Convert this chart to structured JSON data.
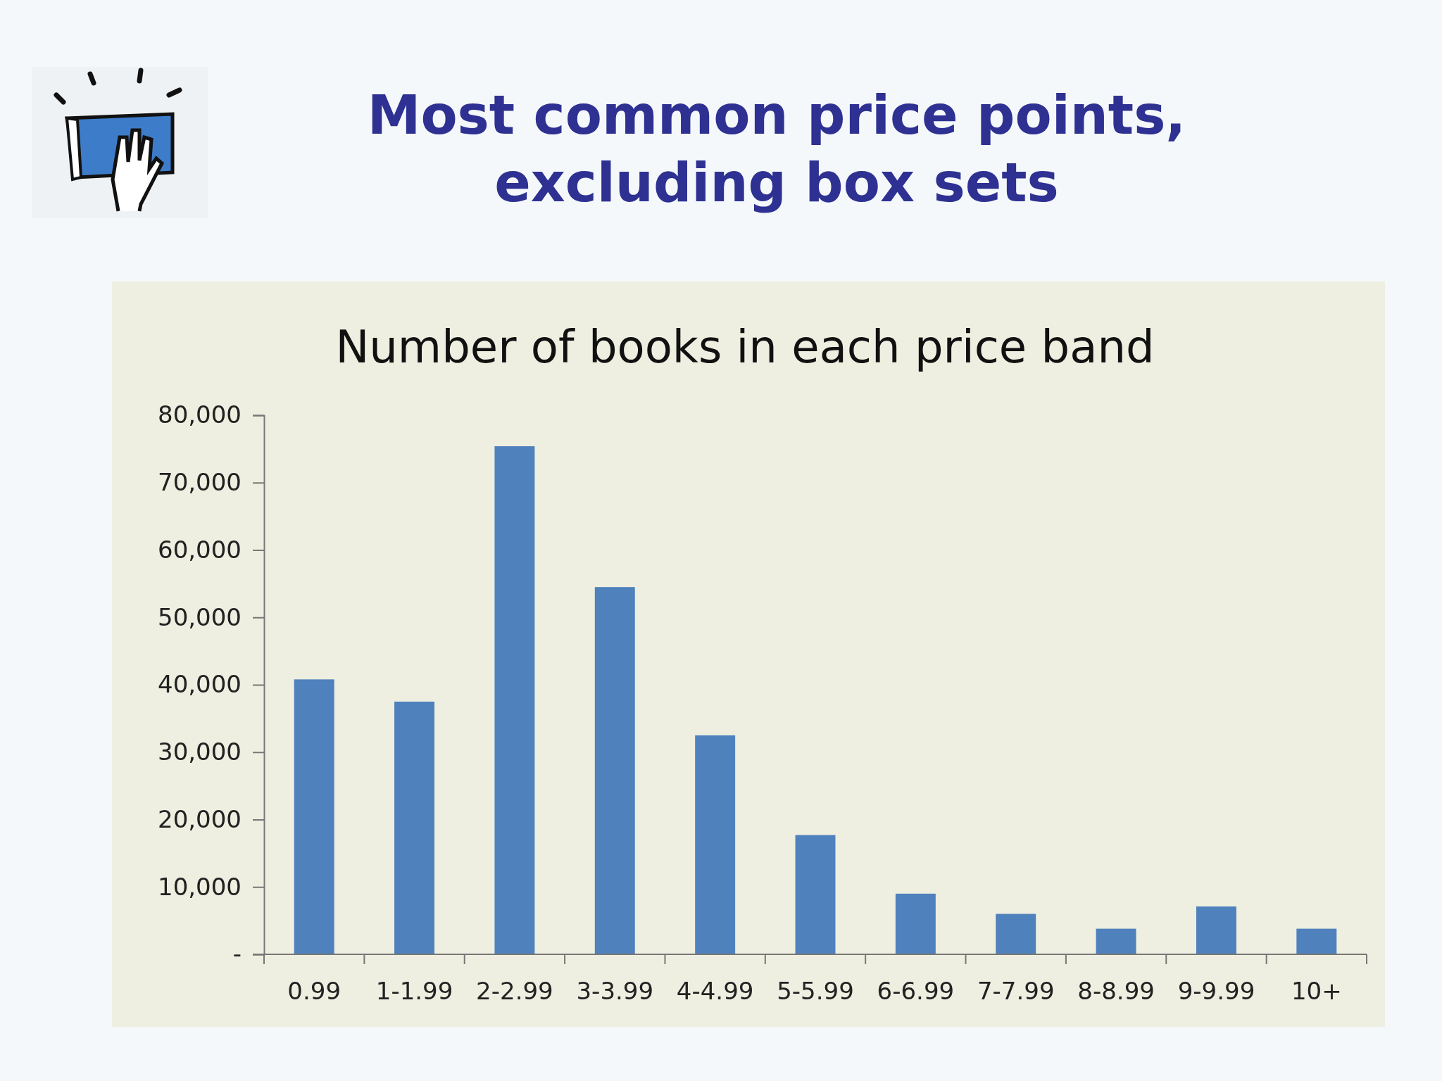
{
  "chart_data": {
    "type": "bar",
    "title": "Most common price points,\nexcluding box sets",
    "subtitle": "Number of books in each price band",
    "categories": [
      "0.99",
      "1-1.99",
      "2-2.99",
      "3-3.99",
      "4-4.99",
      "5-5.99",
      "6-6.99",
      "7-7.99",
      "8-8.99",
      "9-9.99",
      "10+"
    ],
    "values": [
      40800,
      37500,
      75400,
      54500,
      32500,
      17700,
      9000,
      6000,
      3800,
      7100,
      3800
    ],
    "color": "#4f81bd",
    "ylim": [
      0,
      80000
    ],
    "yticks": [
      {
        "value": 0,
        "label": "-"
      },
      {
        "value": 10000,
        "label": "10,000"
      },
      {
        "value": 20000,
        "label": "20,000"
      },
      {
        "value": 30000,
        "label": "30,000"
      },
      {
        "value": 40000,
        "label": "40,000"
      },
      {
        "value": 50000,
        "label": "50,000"
      },
      {
        "value": 60000,
        "label": "60,000"
      },
      {
        "value": 70000,
        "label": "70,000"
      },
      {
        "value": 80000,
        "label": "80,000"
      }
    ],
    "grid": false
  }
}
